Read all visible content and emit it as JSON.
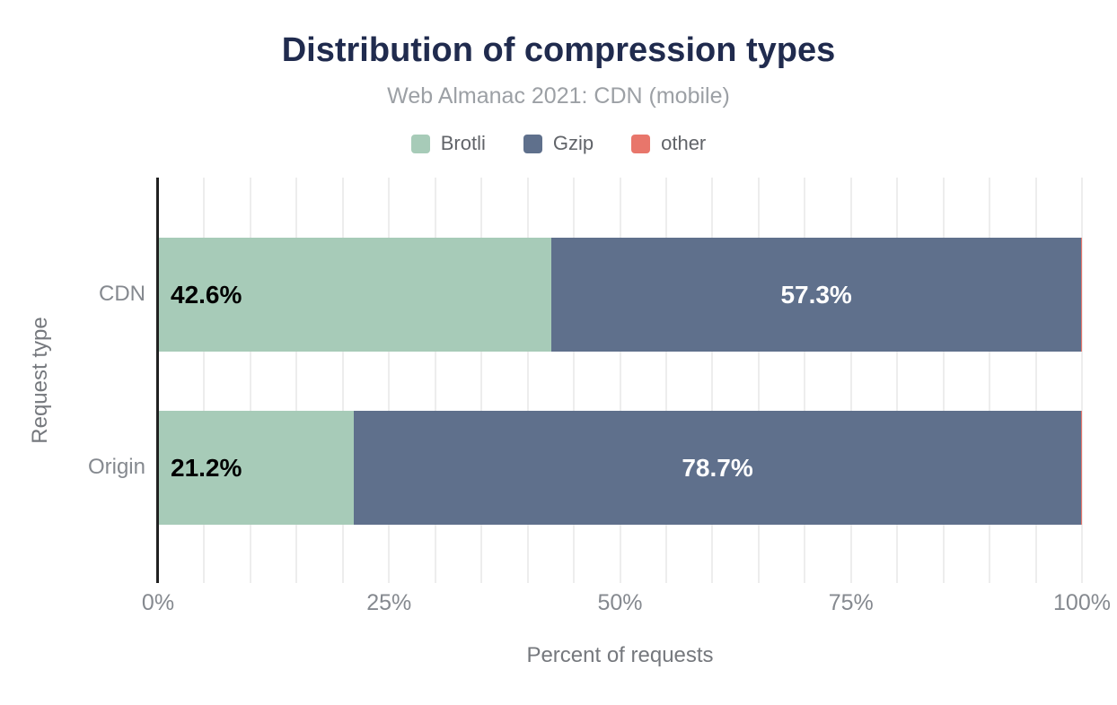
{
  "chart_data": {
    "type": "bar",
    "orientation": "horizontal",
    "stacked": true,
    "title": "Distribution of compression types",
    "subtitle": "Web Almanac 2021: CDN (mobile)",
    "categories": [
      "CDN",
      "Origin"
    ],
    "series": [
      {
        "name": "Brotli",
        "color": "#a7cbb8",
        "values": [
          42.6,
          21.2
        ],
        "value_labels": [
          "42.6%",
          "21.2%"
        ],
        "label_color": "#000000",
        "label_align": "start"
      },
      {
        "name": "Gzip",
        "color": "#5f708c",
        "values": [
          57.3,
          78.7
        ],
        "value_labels": [
          "57.3%",
          "78.7%"
        ],
        "label_color": "#ffffff",
        "label_align": "center"
      },
      {
        "name": "other",
        "color": "#e8766b",
        "values": [
          0.1,
          0.1
        ],
        "value_labels": [
          "",
          ""
        ],
        "label_color": "#ffffff",
        "label_align": "center"
      }
    ],
    "xlabel": "Percent of requests",
    "ylabel": "Request type",
    "xlim": [
      0,
      100
    ],
    "x_ticks": [
      {
        "value": 0,
        "label": "0%"
      },
      {
        "value": 25,
        "label": "25%"
      },
      {
        "value": 50,
        "label": "50%"
      },
      {
        "value": 75,
        "label": "75%"
      },
      {
        "value": 100,
        "label": "100%"
      }
    ],
    "gridline_step": 5,
    "grid": true,
    "legend_position": "top"
  },
  "layout_colors": {
    "title": "#202b4e",
    "subtitle": "#9ca0a5",
    "axis_line": "#212121",
    "gridline": "#ededed",
    "tick_label": "#85898f",
    "axis_title": "#75787d"
  }
}
